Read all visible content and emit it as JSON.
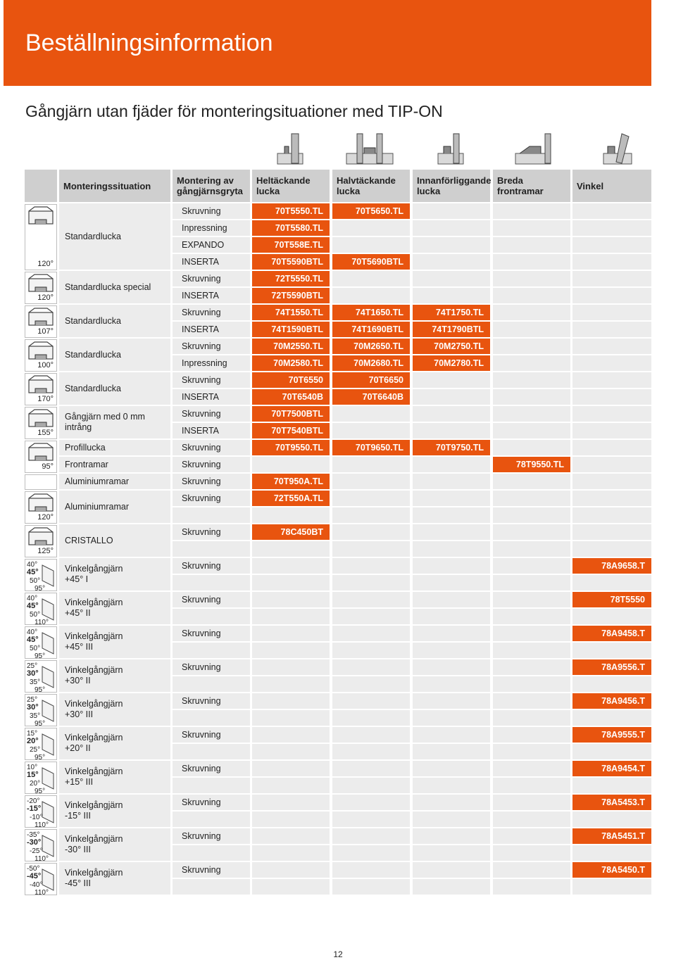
{
  "title": "Beställningsinformation",
  "subtitle": "Gångjärn utan fjäder för monteringsituationer med TIP-ON",
  "headers": [
    "Monteringssituation",
    "Montering av gångjärnsgryta",
    "Heltäckande lucka",
    "Halvtäckande lucka",
    "Innanförliggande lucka",
    "Breda frontramar",
    "Vinkel"
  ],
  "rows": [
    {
      "angle": [
        "120°"
      ],
      "situation": "Standardlucka",
      "lines": [
        {
          "mount": "Skruvning",
          "codes": [
            "70T5550.TL",
            "70T5650.TL",
            "",
            "",
            ""
          ]
        },
        {
          "mount": "Inpressning",
          "codes": [
            "70T5580.TL",
            "",
            "",
            "",
            ""
          ]
        },
        {
          "mount": "EXPANDO",
          "codes": [
            "70T558E.TL",
            "",
            "",
            "",
            ""
          ]
        },
        {
          "mount": "INSERTA",
          "codes": [
            "70T5590BTL",
            "70T5690BTL",
            "",
            "",
            ""
          ]
        }
      ]
    },
    {
      "angle": [
        "120°"
      ],
      "situation": "Standardlucka special",
      "lines": [
        {
          "mount": "Skruvning",
          "codes": [
            "72T5550.TL",
            "",
            "",
            "",
            ""
          ]
        },
        {
          "mount": "INSERTA",
          "codes": [
            "72T5590BTL",
            "",
            "",
            "",
            ""
          ]
        }
      ]
    },
    {
      "angle": [
        "107°"
      ],
      "situation": "Standardlucka",
      "lines": [
        {
          "mount": "Skruvning",
          "codes": [
            "74T1550.TL",
            "74T1650.TL",
            "74T1750.TL",
            "",
            ""
          ]
        },
        {
          "mount": "INSERTA",
          "codes": [
            "74T1590BTL",
            "74T1690BTL",
            "74T1790BTL",
            "",
            ""
          ]
        }
      ]
    },
    {
      "angle": [
        "100°"
      ],
      "situation": "Standardlucka",
      "lines": [
        {
          "mount": "Skruvning",
          "codes": [
            "70M2550.TL",
            "70M2650.TL",
            "70M2750.TL",
            "",
            ""
          ]
        },
        {
          "mount": "Inpressning",
          "codes": [
            "70M2580.TL",
            "70M2680.TL",
            "70M2780.TL",
            "",
            ""
          ]
        }
      ]
    },
    {
      "angle": [
        "170°"
      ],
      "situation": "Standardlucka",
      "lines": [
        {
          "mount": "Skruvning",
          "codes": [
            "70T6550",
            "70T6650",
            "",
            "",
            ""
          ]
        },
        {
          "mount": "INSERTA",
          "codes": [
            "70T6540B",
            "70T6640B",
            "",
            "",
            ""
          ]
        }
      ]
    },
    {
      "angle": [
        "155°"
      ],
      "situation": "Gångjärn med 0 mm intrång",
      "lines": [
        {
          "mount": "Skruvning",
          "codes": [
            "70T7500BTL",
            "",
            "",
            "",
            ""
          ]
        },
        {
          "mount": "INSERTA",
          "codes": [
            "70T7540BTL",
            "",
            "",
            "",
            ""
          ]
        }
      ]
    },
    {
      "angle": [
        "95°"
      ],
      "situation": "Profillucka",
      "span": 2,
      "lines": [
        {
          "mount": "Skruvning",
          "codes": [
            "70T9550.TL",
            "70T9650.TL",
            "70T9750.TL",
            "",
            ""
          ],
          "situation_line": 0
        },
        {
          "mount": "Skruvning",
          "codes": [
            "",
            "",
            "",
            "78T9550.TL",
            ""
          ],
          "situation": "Frontramar"
        }
      ]
    },
    {
      "angle": [],
      "situation": "Aluminiumramar",
      "lines": [
        {
          "mount": "Skruvning",
          "codes": [
            "70T950A.TL",
            "",
            "",
            "",
            ""
          ]
        }
      ]
    },
    {
      "angle": [
        "120°"
      ],
      "situation": "Aluminiumramar",
      "lines": [
        {
          "mount": "Skruvning",
          "codes": [
            "72T550A.TL",
            "",
            "",
            "",
            ""
          ]
        },
        {
          "mount": "",
          "codes": [
            "",
            "",
            "",
            "",
            ""
          ]
        }
      ]
    },
    {
      "angle": [
        "125°"
      ],
      "situation": "CRISTALLO",
      "lines": [
        {
          "mount": "Skruvning",
          "codes": [
            "78C450BT",
            "",
            "",
            "",
            ""
          ]
        },
        {
          "mount": "",
          "codes": [
            "",
            "",
            "",
            "",
            ""
          ]
        }
      ]
    },
    {
      "angle": [
        "40°",
        "45°",
        "50°",
        "95°"
      ],
      "situation": "Vinkelgångjärn",
      "situation2": "+45° I",
      "lines": [
        {
          "mount": "Skruvning",
          "codes": [
            "",
            "",
            "",
            "",
            "78A9658.T"
          ]
        },
        {
          "mount": "",
          "codes": [
            "",
            "",
            "",
            "",
            ""
          ]
        }
      ]
    },
    {
      "angle": [
        "40°",
        "45°",
        "50°",
        "110°"
      ],
      "situation": "Vinkelgångjärn",
      "situation2": "+45° II",
      "lines": [
        {
          "mount": "Skruvning",
          "codes": [
            "",
            "",
            "",
            "",
            "78T5550"
          ]
        },
        {
          "mount": "",
          "codes": [
            "",
            "",
            "",
            "",
            ""
          ]
        }
      ]
    },
    {
      "angle": [
        "40°",
        "45°",
        "50°",
        "95°"
      ],
      "situation": "Vinkelgångjärn",
      "situation2": "+45° III",
      "lines": [
        {
          "mount": "Skruvning",
          "codes": [
            "",
            "",
            "",
            "",
            "78A9458.T"
          ]
        },
        {
          "mount": "",
          "codes": [
            "",
            "",
            "",
            "",
            ""
          ]
        }
      ]
    },
    {
      "angle": [
        "25°",
        "30°",
        "35°",
        "95°"
      ],
      "situation": "Vinkelgångjärn",
      "situation2": "+30° II",
      "lines": [
        {
          "mount": "Skruvning",
          "codes": [
            "",
            "",
            "",
            "",
            "78A9556.T"
          ]
        },
        {
          "mount": "",
          "codes": [
            "",
            "",
            "",
            "",
            ""
          ]
        }
      ]
    },
    {
      "angle": [
        "25°",
        "30°",
        "35°",
        "95°"
      ],
      "situation": "Vinkelgångjärn",
      "situation2": "+30° III",
      "lines": [
        {
          "mount": "Skruvning",
          "codes": [
            "",
            "",
            "",
            "",
            "78A9456.T"
          ]
        },
        {
          "mount": "",
          "codes": [
            "",
            "",
            "",
            "",
            ""
          ]
        }
      ]
    },
    {
      "angle": [
        "15°",
        "20°",
        "25°",
        "95°"
      ],
      "situation": "Vinkelgångjärn",
      "situation2": "+20° II",
      "lines": [
        {
          "mount": "Skruvning",
          "codes": [
            "",
            "",
            "",
            "",
            "78A9555.T"
          ]
        },
        {
          "mount": "",
          "codes": [
            "",
            "",
            "",
            "",
            ""
          ]
        }
      ]
    },
    {
      "angle": [
        "10°",
        "15°",
        "20°",
        "95°"
      ],
      "situation": "Vinkelgångjärn",
      "situation2": "+15° III",
      "lines": [
        {
          "mount": "Skruvning",
          "codes": [
            "",
            "",
            "",
            "",
            "78A9454.T"
          ]
        },
        {
          "mount": "",
          "codes": [
            "",
            "",
            "",
            "",
            ""
          ]
        }
      ]
    },
    {
      "angle": [
        "-20°",
        "-15°",
        "-10°",
        "110°"
      ],
      "situation": "Vinkelgångjärn",
      "situation2": "-15° III",
      "lines": [
        {
          "mount": "Skruvning",
          "codes": [
            "",
            "",
            "",
            "",
            "78A5453.T"
          ]
        },
        {
          "mount": "",
          "codes": [
            "",
            "",
            "",
            "",
            ""
          ]
        }
      ]
    },
    {
      "angle": [
        "-35°",
        "-30°",
        "-25°",
        "110°"
      ],
      "situation": "Vinkelgångjärn",
      "situation2": "-30° III",
      "lines": [
        {
          "mount": "Skruvning",
          "codes": [
            "",
            "",
            "",
            "",
            "78A5451.T"
          ]
        },
        {
          "mount": "",
          "codes": [
            "",
            "",
            "",
            "",
            ""
          ]
        }
      ]
    },
    {
      "angle": [
        "-50°",
        "-45°",
        "-40°",
        "110°"
      ],
      "situation": "Vinkelgångjärn",
      "situation2": "-45° III",
      "lines": [
        {
          "mount": "Skruvning",
          "codes": [
            "",
            "",
            "",
            "",
            "78A5450.T"
          ]
        },
        {
          "mount": "",
          "codes": [
            "",
            "",
            "",
            "",
            ""
          ]
        }
      ]
    }
  ],
  "page_number": "12",
  "colors": {
    "accent": "#e8540f",
    "cell": "#ececec",
    "header": "#cfcfcf"
  },
  "icons": [
    "overlay-door-icon",
    "half-overlay-door-icon",
    "inset-door-icon",
    "wide-frame-icon",
    "angle-hinge-icon"
  ]
}
